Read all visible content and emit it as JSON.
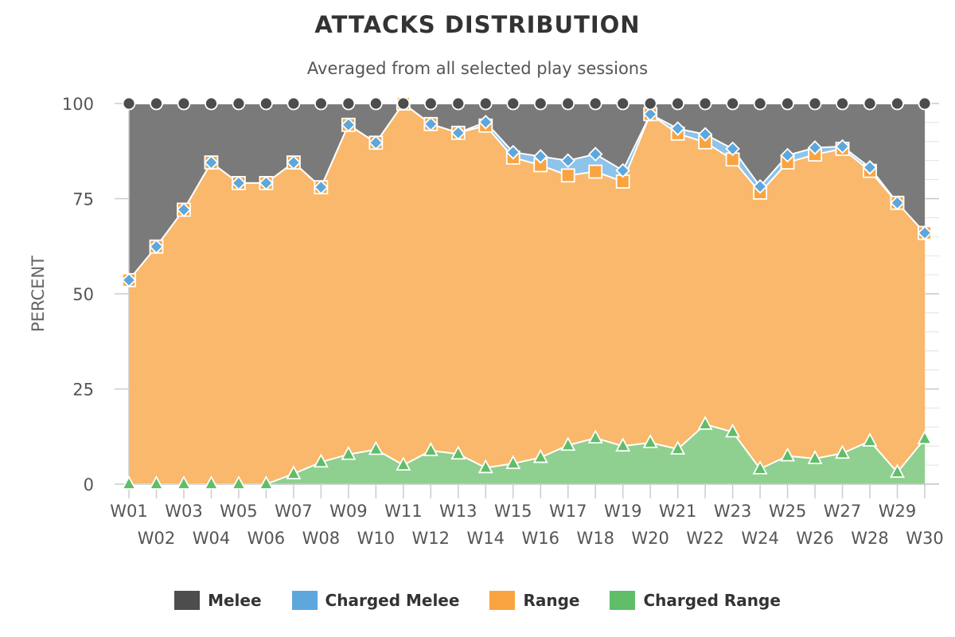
{
  "chart_data": {
    "type": "area",
    "stacked": true,
    "title": "ATTACKS DISTRIBUTION",
    "subtitle": "Averaged from all selected play sessions",
    "ylabel": "PERCENT",
    "xlabel": "",
    "ylim": [
      0,
      100
    ],
    "yticks": [
      0,
      25,
      50,
      75,
      100
    ],
    "grid": true,
    "legend_position": "bottom",
    "categories": [
      "W01",
      "W02",
      "W03",
      "W04",
      "W05",
      "W06",
      "W07",
      "W08",
      "W09",
      "W10",
      "W11",
      "W12",
      "W13",
      "W14",
      "W15",
      "W16",
      "W17",
      "W18",
      "W19",
      "W20",
      "W21",
      "W22",
      "W23",
      "W24",
      "W25",
      "W26",
      "W27",
      "W28",
      "W29",
      "W30"
    ],
    "series": [
      {
        "name": "Melee",
        "color": "#4d4d4d",
        "marker": "circle",
        "values": [
          46.4,
          37.6,
          27.9,
          15.5,
          20.9,
          20.9,
          15.5,
          22.0,
          5.6,
          10.3,
          0,
          5.4,
          7.7,
          4.9,
          12.8,
          13.9,
          15.0,
          13.3,
          17.6,
          2.8,
          6.6,
          8.1,
          11.9,
          21.8,
          13.6,
          11.6,
          11.3,
          16.8,
          26.1,
          34.0
        ]
      },
      {
        "name": "Charged Melee",
        "color": "#5da7dd",
        "marker": "diamond",
        "values": [
          0,
          0,
          0,
          0,
          0,
          0,
          0,
          0,
          0,
          0,
          0,
          0,
          0,
          0.9,
          1.4,
          2.3,
          3.9,
          4.6,
          2.9,
          0,
          1.3,
          2.1,
          2.8,
          1.6,
          1.9,
          1.8,
          0.6,
          0.9,
          0,
          0
        ]
      },
      {
        "name": "Range",
        "color": "#f9a440",
        "marker": "square",
        "values": [
          53.6,
          62.4,
          72.1,
          84.5,
          79.1,
          79.1,
          81.8,
          72.2,
          86.6,
          80.6,
          95.0,
          85.8,
          84.4,
          89.9,
          80.4,
          76.8,
          70.9,
          70.0,
          69.5,
          86.3,
          82.9,
          74.1,
          71.6,
          72.6,
          77.1,
          79.9,
          80.0,
          71.0,
          70.8,
          54.1
        ]
      },
      {
        "name": "Charged Range",
        "color": "#5fbe67",
        "marker": "triangle",
        "values": [
          0,
          0,
          0,
          0,
          0,
          0,
          2.7,
          5.8,
          7.8,
          9.1,
          5.0,
          8.8,
          7.9,
          4.3,
          5.4,
          7.0,
          10.2,
          12.1,
          10.0,
          10.9,
          9.2,
          15.7,
          13.7,
          4.0,
          7.4,
          6.7,
          8.1,
          11.3,
          3.1,
          11.9
        ]
      }
    ]
  }
}
